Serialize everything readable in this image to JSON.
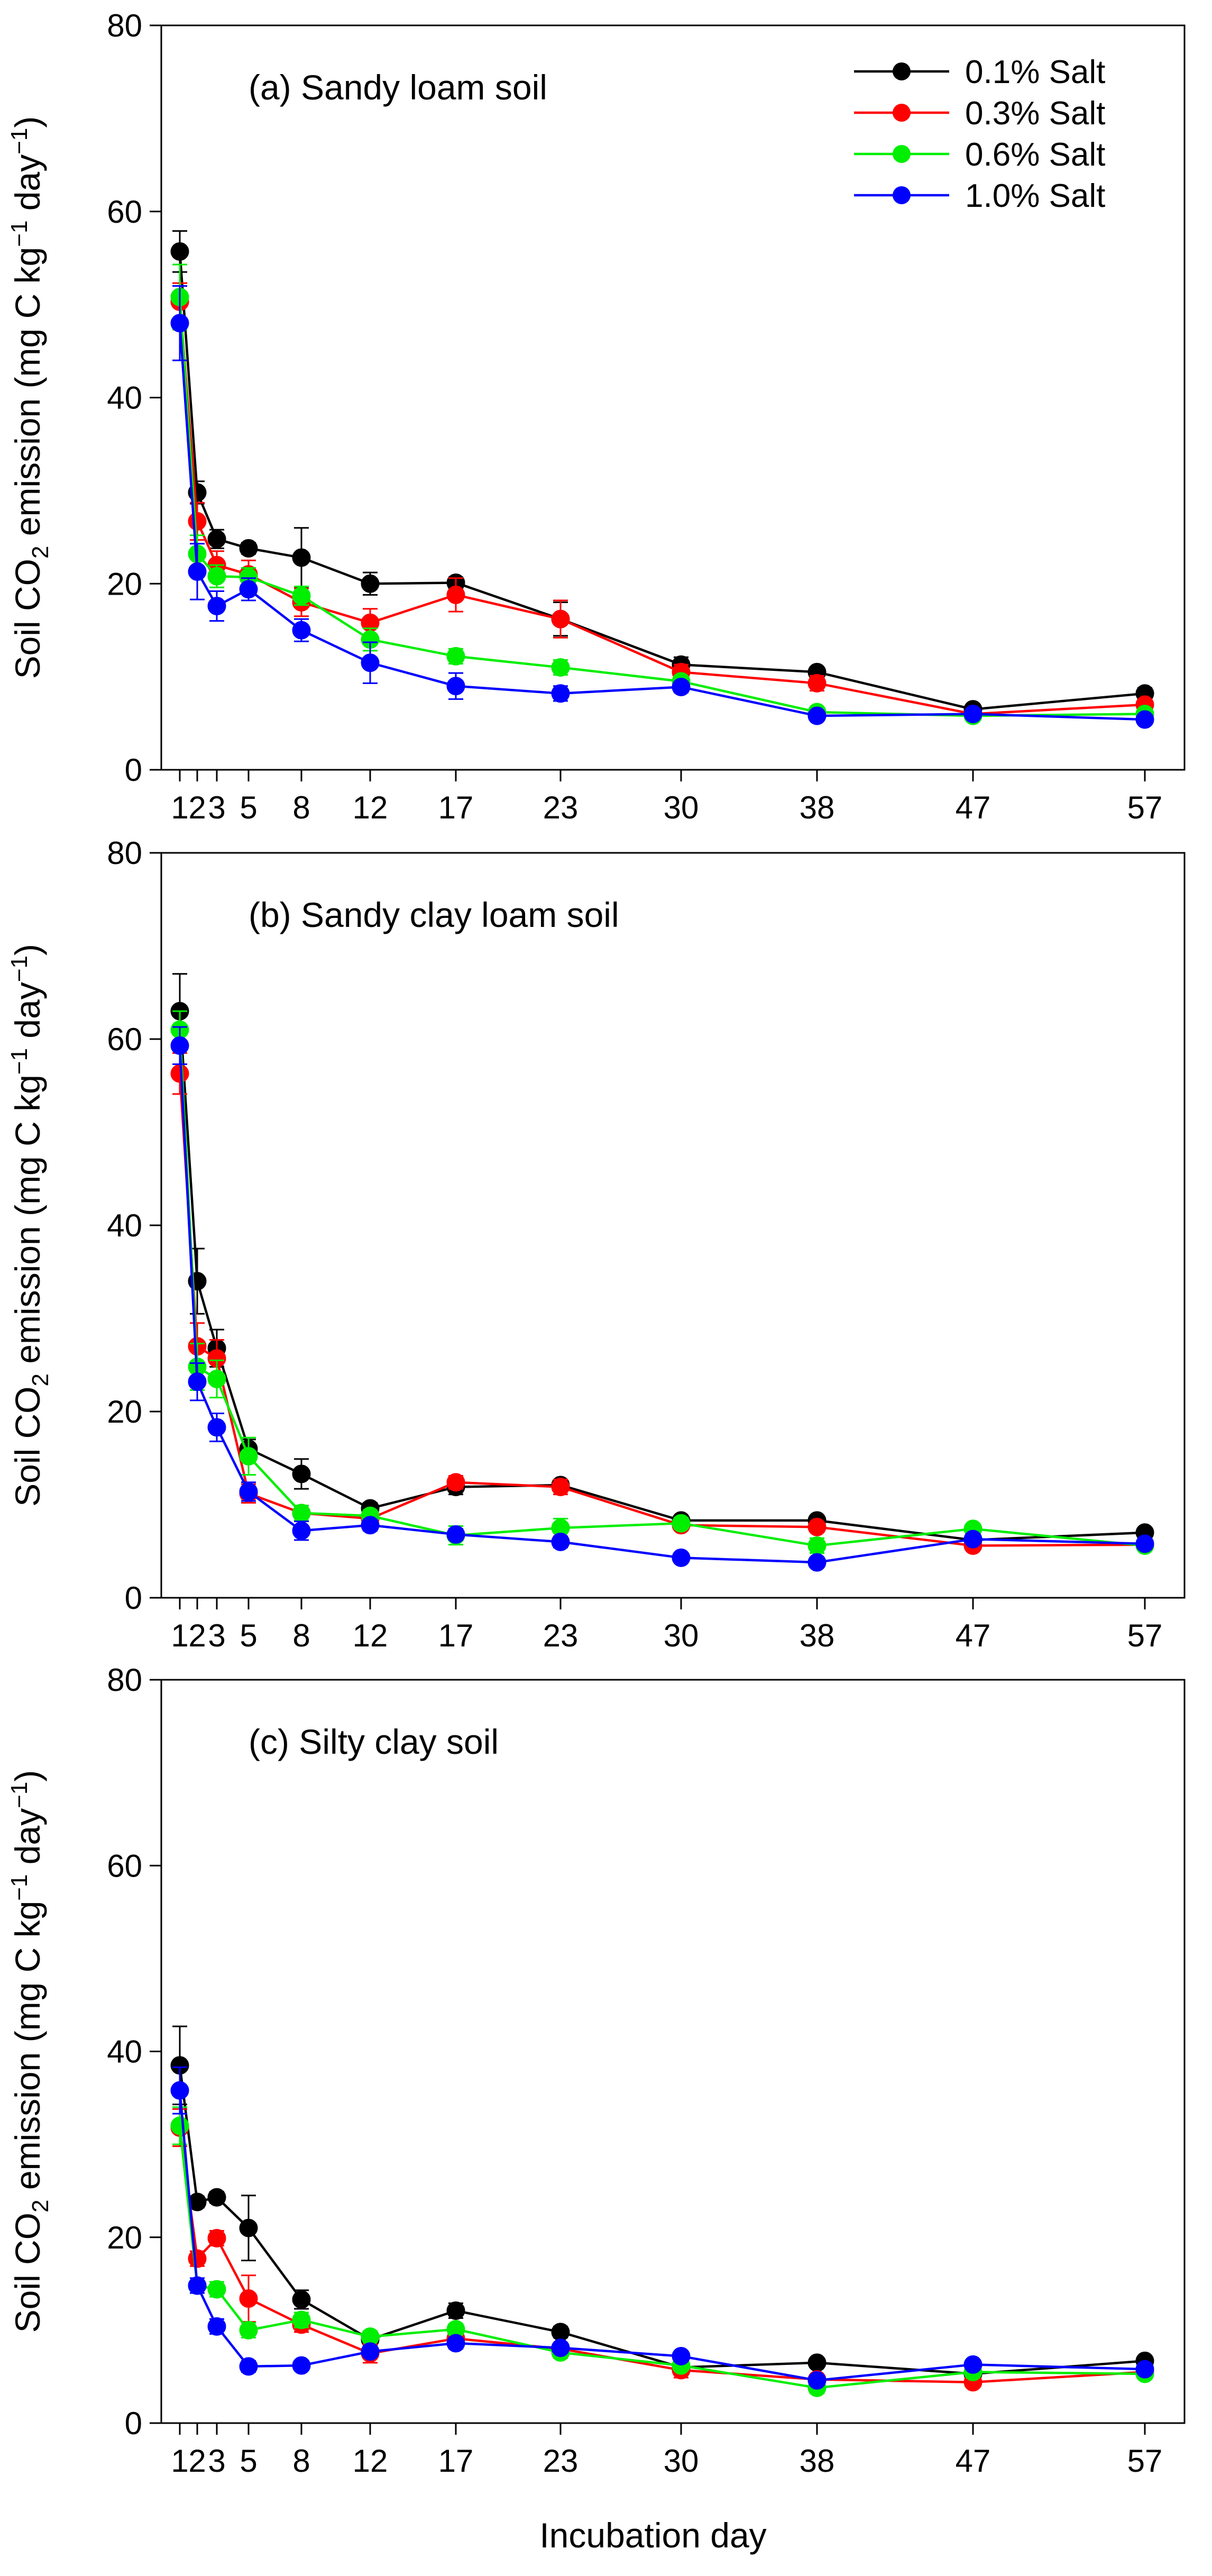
{
  "chart_data": {
    "type": "line",
    "xlabel": "Incubation day",
    "ylabel_main": "Soil CO",
    "ylabel_sub": "2",
    "ylabel_mid": " emission (mg C kg",
    "ylabel_sup": "−1",
    "ylabel_end": " day",
    "ylabel_sup2": "−1",
    "ylabel_close": ")",
    "ylim": [
      0,
      80
    ],
    "yticks": [
      0,
      20,
      40,
      60,
      80
    ],
    "x": [
      1,
      2,
      3,
      5,
      8,
      12,
      17,
      23,
      30,
      38,
      47,
      57
    ],
    "xtick_labels": [
      "1",
      "2",
      "3",
      "5",
      "8",
      "12",
      "17",
      "23",
      "30",
      "38",
      "47",
      "57"
    ],
    "legend": {
      "placement": "top-right",
      "entries": [
        {
          "label": "0.1% Salt",
          "color": "#000000"
        },
        {
          "label": "0.3% Salt",
          "color": "#ff0000"
        },
        {
          "label": "0.6% Salt",
          "color": "#00ee00"
        },
        {
          "label": "1.0% Salt",
          "color": "#0000ff"
        }
      ]
    },
    "panels": [
      {
        "title": "(a) Sandy loam soil",
        "series": [
          {
            "name": "0.1% Salt",
            "color": "#000000",
            "values": [
              55.7,
              29.8,
              24.8,
              23.8,
              22.8,
              20.0,
              20.1,
              16.2,
              11.3,
              10.5,
              6.5,
              8.2
            ],
            "errors": [
              2.2,
              1.2,
              1.0,
              0.6,
              3.2,
              1.2,
              0.6,
              1.8,
              0.8,
              0.5,
              0.3,
              0.6
            ]
          },
          {
            "name": "0.3% Salt",
            "color": "#ff0000",
            "values": [
              50.3,
              26.7,
              22.0,
              21.0,
              18.0,
              15.8,
              18.8,
              16.2,
              10.5,
              9.3,
              6.0,
              7.0
            ],
            "errors": [
              2.0,
              2.0,
              1.5,
              1.5,
              1.5,
              1.5,
              1.8,
              2.0,
              0.8,
              0.8,
              0.4,
              0.4
            ]
          },
          {
            "name": "0.6% Salt",
            "color": "#00ee00",
            "values": [
              50.8,
              23.2,
              20.8,
              20.7,
              18.7,
              14.0,
              12.2,
              11.0,
              9.5,
              6.2,
              5.8,
              6.0
            ],
            "errors": [
              3.5,
              2.0,
              1.2,
              1.0,
              1.0,
              1.2,
              0.8,
              0.8,
              0.6,
              0.4,
              0.3,
              0.4
            ]
          },
          {
            "name": "1.0% Salt",
            "color": "#0000ff",
            "values": [
              48.0,
              21.3,
              17.6,
              19.4,
              15.0,
              11.5,
              9.0,
              8.2,
              8.9,
              5.8,
              6.0,
              5.4
            ],
            "errors": [
              4.0,
              3.0,
              1.6,
              1.2,
              1.2,
              2.2,
              1.4,
              0.8,
              0.6,
              0.4,
              0.3,
              0.4
            ]
          }
        ]
      },
      {
        "title": "(b) Sandy clay loam soil",
        "series": [
          {
            "name": "0.1% Salt",
            "color": "#000000",
            "values": [
              63.0,
              34.0,
              26.8,
              16.0,
              13.3,
              9.6,
              11.9,
              12.1,
              8.3,
              8.3,
              6.2,
              7.0
            ],
            "errors": [
              4.0,
              3.5,
              2.0,
              1.0,
              1.6,
              0.6,
              0.8,
              0.6,
              0.5,
              0.5,
              0.3,
              0.3
            ]
          },
          {
            "name": "0.3% Salt",
            "color": "#ff0000",
            "values": [
              56.3,
              27.0,
              25.7,
              11.2,
              9.1,
              8.5,
              12.4,
              11.9,
              7.8,
              7.6,
              5.6,
              5.7
            ],
            "errors": [
              2.2,
              2.5,
              2.0,
              1.0,
              0.8,
              0.6,
              0.7,
              0.8,
              0.5,
              0.5,
              0.3,
              0.3
            ]
          },
          {
            "name": "0.6% Salt",
            "color": "#00ee00",
            "values": [
              61.0,
              24.8,
              23.5,
              15.2,
              9.1,
              8.8,
              6.7,
              7.5,
              8.0,
              5.6,
              7.4,
              5.6
            ],
            "errors": [
              2.0,
              2.5,
              2.0,
              2.0,
              0.8,
              0.6,
              1.0,
              1.0,
              0.6,
              0.8,
              0.4,
              0.3
            ]
          },
          {
            "name": "1.0% Salt",
            "color": "#0000ff",
            "values": [
              59.3,
              23.2,
              18.3,
              11.4,
              7.2,
              7.8,
              6.8,
              6.0,
              4.3,
              3.8,
              6.3,
              5.8
            ],
            "errors": [
              2.0,
              2.0,
              1.5,
              1.0,
              1.0,
              0.6,
              0.6,
              0.6,
              0.5,
              0.5,
              0.3,
              0.3
            ]
          }
        ]
      },
      {
        "title": "(c) Silty clay soil",
        "series": [
          {
            "name": "0.1% Salt",
            "color": "#000000",
            "values": [
              38.5,
              23.8,
              24.3,
              21.0,
              13.3,
              9.0,
              12.1,
              9.8,
              6.0,
              6.5,
              5.3,
              6.7
            ],
            "errors": [
              4.2,
              0.6,
              0.6,
              3.5,
              1.0,
              0.6,
              0.8,
              0.6,
              0.5,
              0.4,
              0.3,
              0.3
            ]
          },
          {
            "name": "0.3% Salt",
            "color": "#ff0000",
            "values": [
              31.8,
              17.7,
              19.9,
              13.4,
              10.6,
              7.5,
              9.1,
              8.0,
              5.7,
              4.7,
              4.4,
              5.5
            ],
            "errors": [
              2.0,
              0.8,
              0.8,
              2.5,
              0.8,
              1.0,
              0.6,
              0.6,
              0.8,
              0.4,
              0.3,
              0.3
            ]
          },
          {
            "name": "0.6% Salt",
            "color": "#00ee00",
            "values": [
              32.0,
              14.8,
              14.4,
              10.0,
              11.1,
              9.3,
              10.1,
              7.6,
              6.2,
              3.8,
              5.5,
              5.3
            ],
            "errors": [
              2.0,
              0.8,
              0.8,
              0.8,
              0.8,
              0.6,
              0.6,
              0.6,
              0.5,
              0.6,
              0.3,
              0.3
            ]
          },
          {
            "name": "1.0% Salt",
            "color": "#0000ff",
            "values": [
              35.8,
              14.8,
              10.4,
              6.1,
              6.2,
              7.7,
              8.6,
              8.1,
              7.2,
              4.6,
              6.3,
              5.8
            ],
            "errors": [
              2.5,
              0.8,
              0.8,
              0.6,
              0.5,
              0.6,
              0.6,
              0.5,
              0.5,
              0.4,
              0.3,
              0.3
            ]
          }
        ]
      }
    ]
  }
}
